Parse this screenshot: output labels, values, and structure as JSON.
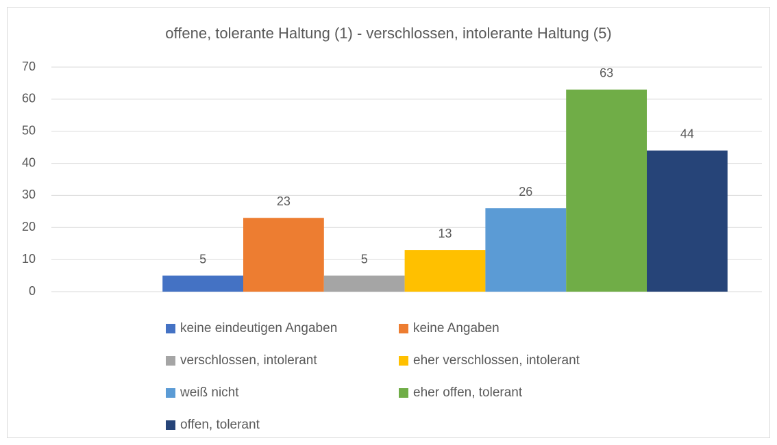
{
  "chart_data": {
    "type": "bar",
    "title": "offene, tolerante Haltung (1) - verschlossen, intolerante Haltung (5)",
    "categories": [
      null
    ],
    "series": [
      {
        "name": "keine eindeutigen Angaben",
        "color": "#4472c4",
        "values": [
          5
        ]
      },
      {
        "name": "keine Angaben",
        "color": "#ed7d31",
        "values": [
          23
        ]
      },
      {
        "name": "verschlossen, intolerant",
        "color": "#a5a5a5",
        "values": [
          5
        ]
      },
      {
        "name": "eher verschlossen, intolerant",
        "color": "#ffc000",
        "values": [
          13
        ]
      },
      {
        "name": "weiß nicht",
        "color": "#5b9bd5",
        "values": [
          26
        ]
      },
      {
        "name": "eher offen, tolerant",
        "color": "#70ad47",
        "values": [
          63
        ]
      },
      {
        "name": "offen, tolerant",
        "color": "#264478",
        "values": [
          44
        ]
      }
    ],
    "ylim": [
      0,
      70
    ],
    "yticks": [
      0,
      10,
      20,
      30,
      40,
      50,
      60,
      70
    ],
    "grid": true,
    "legend": "bottom",
    "data_labels": true
  }
}
